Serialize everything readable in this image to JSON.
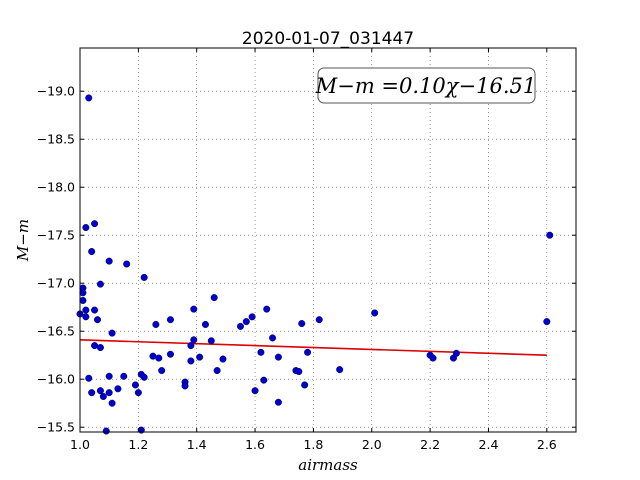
{
  "chart_data": {
    "type": "scatter",
    "title": "2020-01-07_031447",
    "xlabel": "airmass",
    "ylabel": "M−m",
    "xlim": [
      1.0,
      2.7
    ],
    "ylim": [
      -19.45,
      -15.45
    ],
    "y_inverted": true,
    "grid": true,
    "xticks": [
      1.0,
      1.2,
      1.4,
      1.6,
      1.8,
      2.0,
      2.2,
      2.4,
      2.6
    ],
    "xtick_labels": [
      "1.0",
      "1.2",
      "1.4",
      "1.6",
      "1.8",
      "2.0",
      "2.2",
      "2.4",
      "2.6"
    ],
    "yticks": [
      -15.5,
      -16.0,
      -16.5,
      -17.0,
      -17.5,
      -18.0,
      -18.5,
      -19.0
    ],
    "ytick_labels": [
      "−15.5",
      "−16.0",
      "−16.5",
      "−17.0",
      "−17.5",
      "−18.0",
      "−18.5",
      "−19.0"
    ],
    "annotation": "M−m =0.10χ−16.51",
    "annotation_location": "top-right",
    "colors": {
      "points": "#0000cc",
      "fit_line": "#dd0000"
    },
    "points": [
      {
        "x": 1.0,
        "y": -16.68
      },
      {
        "x": 1.01,
        "y": -16.95
      },
      {
        "x": 1.01,
        "y": -16.9
      },
      {
        "x": 1.01,
        "y": -16.82
      },
      {
        "x": 1.02,
        "y": -16.65
      },
      {
        "x": 1.02,
        "y": -16.72
      },
      {
        "x": 1.02,
        "y": -17.58
      },
      {
        "x": 1.03,
        "y": -18.93
      },
      {
        "x": 1.03,
        "y": -16.01
      },
      {
        "x": 1.04,
        "y": -15.86
      },
      {
        "x": 1.04,
        "y": -17.33
      },
      {
        "x": 1.05,
        "y": -17.62
      },
      {
        "x": 1.05,
        "y": -16.35
      },
      {
        "x": 1.05,
        "y": -16.72
      },
      {
        "x": 1.06,
        "y": -16.62
      },
      {
        "x": 1.07,
        "y": -15.88
      },
      {
        "x": 1.07,
        "y": -16.33
      },
      {
        "x": 1.07,
        "y": -16.99
      },
      {
        "x": 1.08,
        "y": -15.82
      },
      {
        "x": 1.09,
        "y": -15.46
      },
      {
        "x": 1.1,
        "y": -15.86
      },
      {
        "x": 1.1,
        "y": -16.03
      },
      {
        "x": 1.1,
        "y": -17.23
      },
      {
        "x": 1.11,
        "y": -15.75
      },
      {
        "x": 1.11,
        "y": -16.48
      },
      {
        "x": 1.13,
        "y": -15.9
      },
      {
        "x": 1.15,
        "y": -16.03
      },
      {
        "x": 1.16,
        "y": -17.2
      },
      {
        "x": 1.19,
        "y": -15.94
      },
      {
        "x": 1.2,
        "y": -15.86
      },
      {
        "x": 1.21,
        "y": -15.47
      },
      {
        "x": 1.21,
        "y": -16.05
      },
      {
        "x": 1.22,
        "y": -16.02
      },
      {
        "x": 1.22,
        "y": -17.06
      },
      {
        "x": 1.25,
        "y": -16.24
      },
      {
        "x": 1.26,
        "y": -16.57
      },
      {
        "x": 1.27,
        "y": -16.22
      },
      {
        "x": 1.28,
        "y": -16.09
      },
      {
        "x": 1.31,
        "y": -16.26
      },
      {
        "x": 1.31,
        "y": -16.62
      },
      {
        "x": 1.36,
        "y": -15.97
      },
      {
        "x": 1.36,
        "y": -15.93
      },
      {
        "x": 1.38,
        "y": -16.19
      },
      {
        "x": 1.38,
        "y": -16.35
      },
      {
        "x": 1.39,
        "y": -16.41
      },
      {
        "x": 1.39,
        "y": -16.73
      },
      {
        "x": 1.41,
        "y": -16.23
      },
      {
        "x": 1.43,
        "y": -16.57
      },
      {
        "x": 1.45,
        "y": -16.4
      },
      {
        "x": 1.46,
        "y": -16.85
      },
      {
        "x": 1.47,
        "y": -16.09
      },
      {
        "x": 1.49,
        "y": -16.21
      },
      {
        "x": 1.55,
        "y": -16.55
      },
      {
        "x": 1.57,
        "y": -16.6
      },
      {
        "x": 1.59,
        "y": -16.65
      },
      {
        "x": 1.6,
        "y": -15.88
      },
      {
        "x": 1.62,
        "y": -16.28
      },
      {
        "x": 1.63,
        "y": -15.99
      },
      {
        "x": 1.64,
        "y": -16.73
      },
      {
        "x": 1.66,
        "y": -16.43
      },
      {
        "x": 1.68,
        "y": -15.76
      },
      {
        "x": 1.68,
        "y": -16.23
      },
      {
        "x": 1.74,
        "y": -16.09
      },
      {
        "x": 1.75,
        "y": -16.08
      },
      {
        "x": 1.76,
        "y": -16.58
      },
      {
        "x": 1.77,
        "y": -15.94
      },
      {
        "x": 1.78,
        "y": -16.28
      },
      {
        "x": 1.82,
        "y": -16.62
      },
      {
        "x": 1.89,
        "y": -16.1
      },
      {
        "x": 2.01,
        "y": -16.69
      },
      {
        "x": 2.2,
        "y": -16.25
      },
      {
        "x": 2.21,
        "y": -16.22
      },
      {
        "x": 2.28,
        "y": -16.22
      },
      {
        "x": 2.29,
        "y": -16.27
      },
      {
        "x": 2.6,
        "y": -16.6
      },
      {
        "x": 2.61,
        "y": -17.5
      }
    ],
    "fit_line": {
      "slope": 0.1,
      "intercept": -16.51,
      "x_range": [
        1.0,
        2.6
      ]
    }
  }
}
